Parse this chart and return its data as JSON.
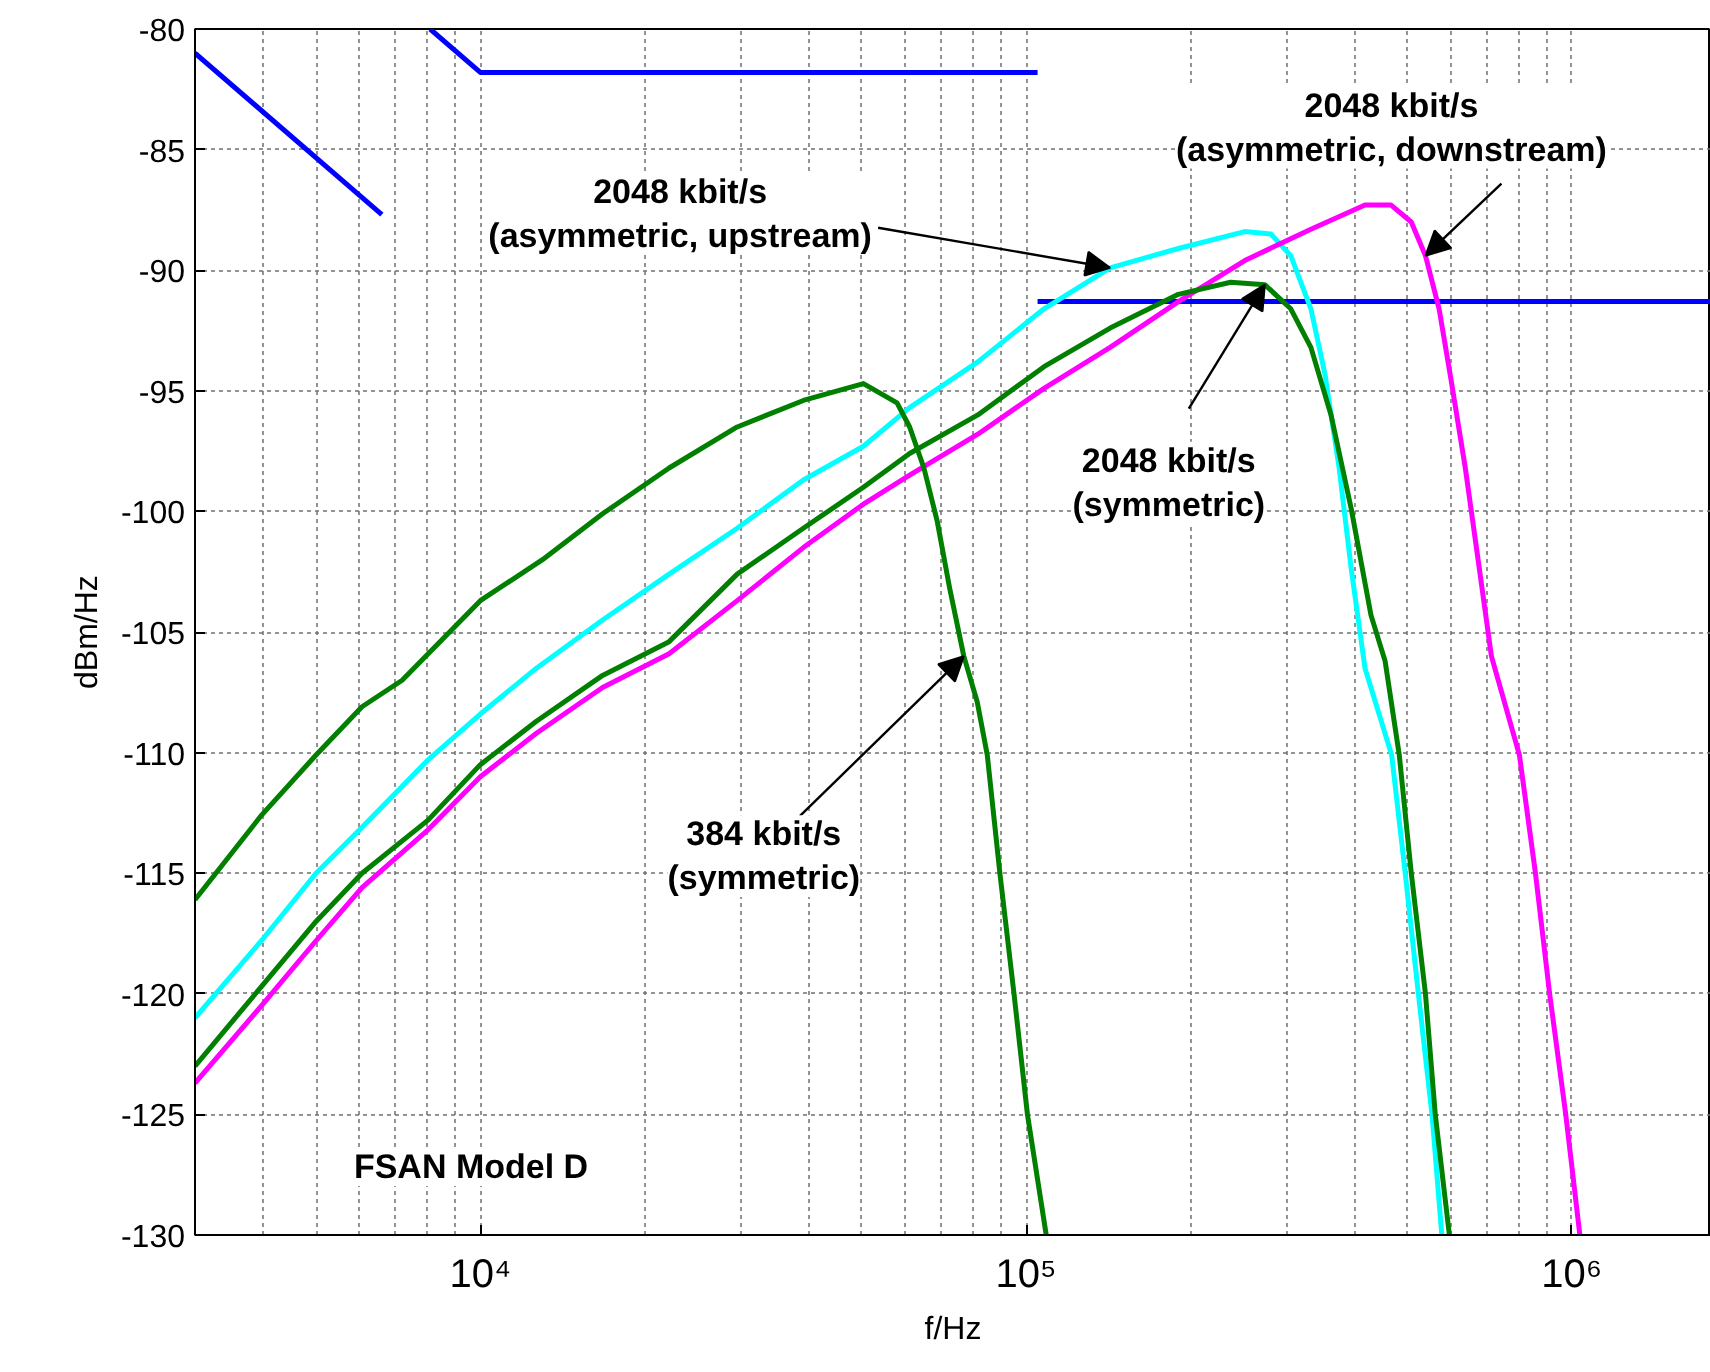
{
  "chart_data": {
    "type": "line",
    "xlabel": "f/Hz",
    "ylabel": "dBm/Hz",
    "log": "x",
    "grid": true,
    "xlim": [
      3000,
      1800000
    ],
    "ylim": [
      -130,
      -80
    ],
    "xticks": [
      {
        "value": 10000,
        "label": "10⁴"
      },
      {
        "value": 100000,
        "label": "10⁵"
      },
      {
        "value": 1000000,
        "label": "10⁶"
      }
    ],
    "yticks": [
      -130,
      -125,
      -120,
      -115,
      -110,
      -105,
      -100,
      -95,
      -90,
      -85,
      -80
    ],
    "series": [
      {
        "color": "#0000ff",
        "x": [
          3000,
          6600
        ],
        "values": [
          -81,
          -87.7
        ]
      },
      {
        "color": "#0000ff",
        "x": [
          8090,
          10000,
          105000
        ],
        "values": [
          -80,
          -81.8,
          -81.8
        ]
      },
      {
        "color": "#0000ff",
        "x": [
          105000,
          1800000
        ],
        "values": [
          -91.3,
          -91.3
        ]
      },
      {
        "color": "#00ffff",
        "x": [
          3000,
          3970,
          5000,
          6070,
          8020,
          10000,
          12670,
          16750,
          22180,
          29560,
          39080,
          50350,
          61200,
          81600,
          107900,
          142600,
          190200,
          251700,
          281000,
          305600,
          332700,
          353000,
          374800,
          394500,
          418000,
          467800,
          495400,
          523600,
          554600,
          578100
        ],
        "values": [
          -121.0,
          -117.8,
          -115.0,
          -113.1,
          -110.3,
          -108.4,
          -106.5,
          -104.5,
          -102.6,
          -100.7,
          -98.7,
          -97.3,
          -95.7,
          -93.8,
          -91.6,
          -89.9,
          -89.1,
          -88.4,
          -88.5,
          -89.4,
          -91.6,
          -94.3,
          -98.2,
          -102.4,
          -106.5,
          -110.1,
          -115.0,
          -120.0,
          -125.0,
          -130.0
        ]
      },
      {
        "color": "#ff00ff",
        "x": [
          3000,
          3970,
          5000,
          6070,
          8020,
          10000,
          12670,
          16750,
          22180,
          29560,
          39080,
          50350,
          61200,
          81600,
          107900,
          142600,
          190200,
          251700,
          332700,
          418000,
          466700,
          508200,
          539500,
          571500,
          601600,
          638300,
          677500,
          712600,
          802000,
          858200,
          911100,
          975200,
          1035000
        ],
        "values": [
          -123.7,
          -120.5,
          -117.8,
          -115.6,
          -113.2,
          -111.0,
          -109.2,
          -107.3,
          -105.9,
          -103.7,
          -101.5,
          -99.7,
          -98.5,
          -96.8,
          -94.9,
          -93.2,
          -91.3,
          -89.6,
          -88.3,
          -87.3,
          -87.3,
          -88.0,
          -89.4,
          -91.6,
          -94.6,
          -98.2,
          -102.4,
          -106.0,
          -110.1,
          -115.0,
          -120.0,
          -125.0,
          -130.0
        ]
      },
      {
        "color": "#007f00",
        "x": [
          3000,
          3970,
          5000,
          6070,
          8020,
          10000,
          12670,
          16750,
          22180,
          29560,
          39080,
          50350,
          61200,
          81600,
          107900,
          142600,
          190200,
          237100,
          273900,
          305600,
          332700,
          362200,
          394500,
          428700,
          455000,
          483100,
          508200,
          539500,
          562300,
          596800
        ],
        "values": [
          -123.0,
          -119.7,
          -117.0,
          -115.0,
          -112.8,
          -110.5,
          -108.7,
          -106.8,
          -105.4,
          -102.6,
          -100.7,
          -99.0,
          -97.6,
          -96.0,
          -94.0,
          -92.4,
          -91.0,
          -90.5,
          -90.6,
          -91.6,
          -93.2,
          -96.0,
          -99.9,
          -104.3,
          -106.2,
          -110.1,
          -115.0,
          -120.0,
          -125.0,
          -130.0
        ]
      },
      {
        "color": "#007f00",
        "x": [
          3000,
          3970,
          5000,
          6070,
          7190,
          10000,
          13000,
          16750,
          22180,
          29560,
          39080,
          50350,
          58030,
          61200,
          65000,
          68740,
          72480,
          76910,
          81400,
          84920,
          89560,
          95060,
          100600,
          108900
        ],
        "values": [
          -116.1,
          -112.6,
          -110.1,
          -108.1,
          -107.0,
          -103.7,
          -102.0,
          -100.1,
          -98.2,
          -96.5,
          -95.4,
          -94.7,
          -95.5,
          -96.5,
          -98.2,
          -100.4,
          -103.2,
          -106.0,
          -107.9,
          -110.1,
          -115.0,
          -120.0,
          -125.0,
          -130.0
        ]
      }
    ],
    "annotations": [
      {
        "text": "2048 kbit/s\n(asymmetric, upstream)",
        "x": 142600,
        "y": -89.9
      },
      {
        "text": "2048 kbit/s\n(asymmetric, downstream)",
        "x": 539500,
        "y": -89.4
      },
      {
        "text": "2048 kbit/s\n(symmetric)",
        "x": 273900,
        "y": -90.6
      },
      {
        "text": "384 kbit/s\n(symmetric)",
        "x": 76910,
        "y": -106.0
      },
      "FSAN Model D"
    ]
  }
}
